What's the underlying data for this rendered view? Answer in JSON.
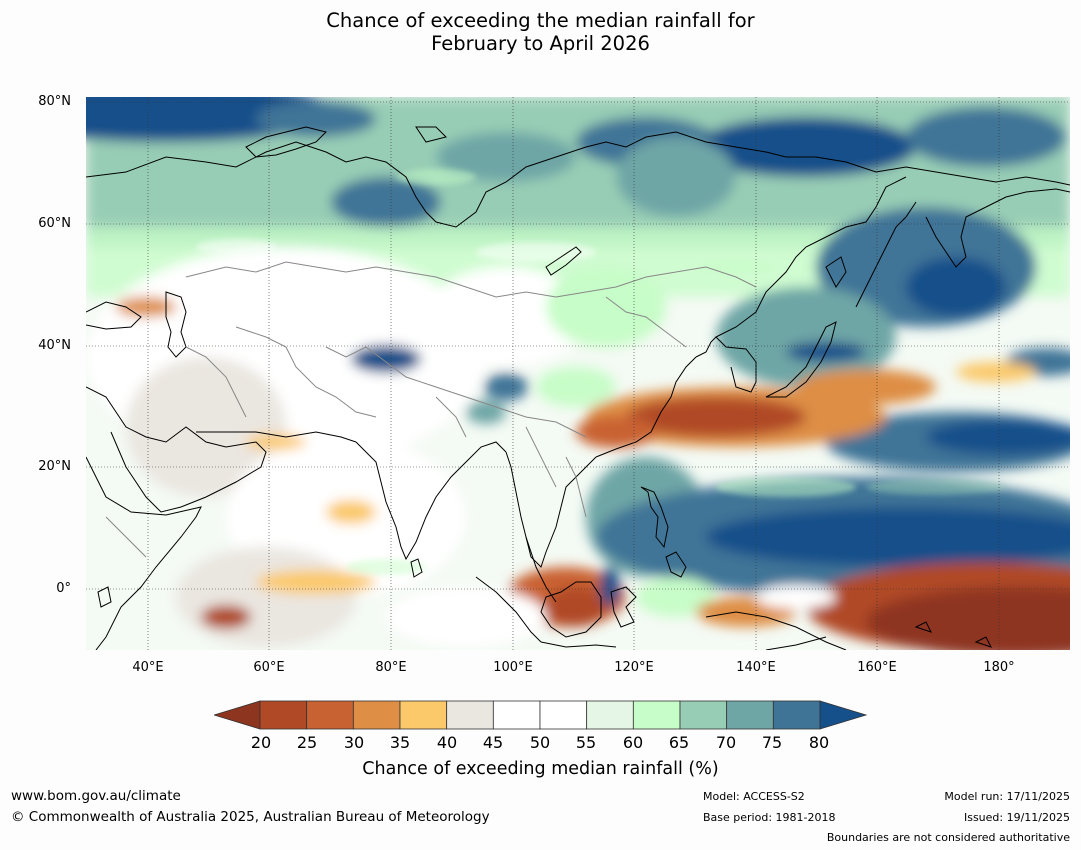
{
  "title": {
    "line1": "Chance of exceeding the median rainfall for",
    "line2": "February to April 2026"
  },
  "map": {
    "lat_labels": [
      "80°N",
      "60°N",
      "40°N",
      "20°N",
      "0°"
    ],
    "lon_labels": [
      "40°E",
      "60°E",
      "80°E",
      "100°E",
      "120°E",
      "140°E",
      "160°E",
      "180°"
    ],
    "extent": {
      "lon_min": 30,
      "lon_max": 191,
      "lat_min": -10,
      "lat_max": 80
    }
  },
  "colorbar": {
    "ticks": [
      "20",
      "25",
      "30",
      "35",
      "40",
      "45",
      "50",
      "55",
      "60",
      "65",
      "70",
      "75",
      "80"
    ],
    "colors": [
      "#8e3520",
      "#b04a26",
      "#c96232",
      "#de8e45",
      "#fbc96a",
      "#eae6e0",
      "#ffffff",
      "#ffffff",
      "#e6f6e6",
      "#c7fdc8",
      "#98cdb5",
      "#6ea6a6",
      "#3f7497",
      "#15508a"
    ],
    "label": "Chance of exceeding median rainfall (%)"
  },
  "footer": {
    "website": "www.bom.gov.au/climate",
    "copyright": "© Commonwealth of Australia 2025, Australian Bureau of Meteorology",
    "model": "Model: ACCESS-S2",
    "base_period": "Base period: 1981-2018",
    "model_run": "Model run: 17/11/2025",
    "issued": "Issued: 19/11/2025",
    "boundaries_note": "Boundaries are not considered authoritative"
  }
}
